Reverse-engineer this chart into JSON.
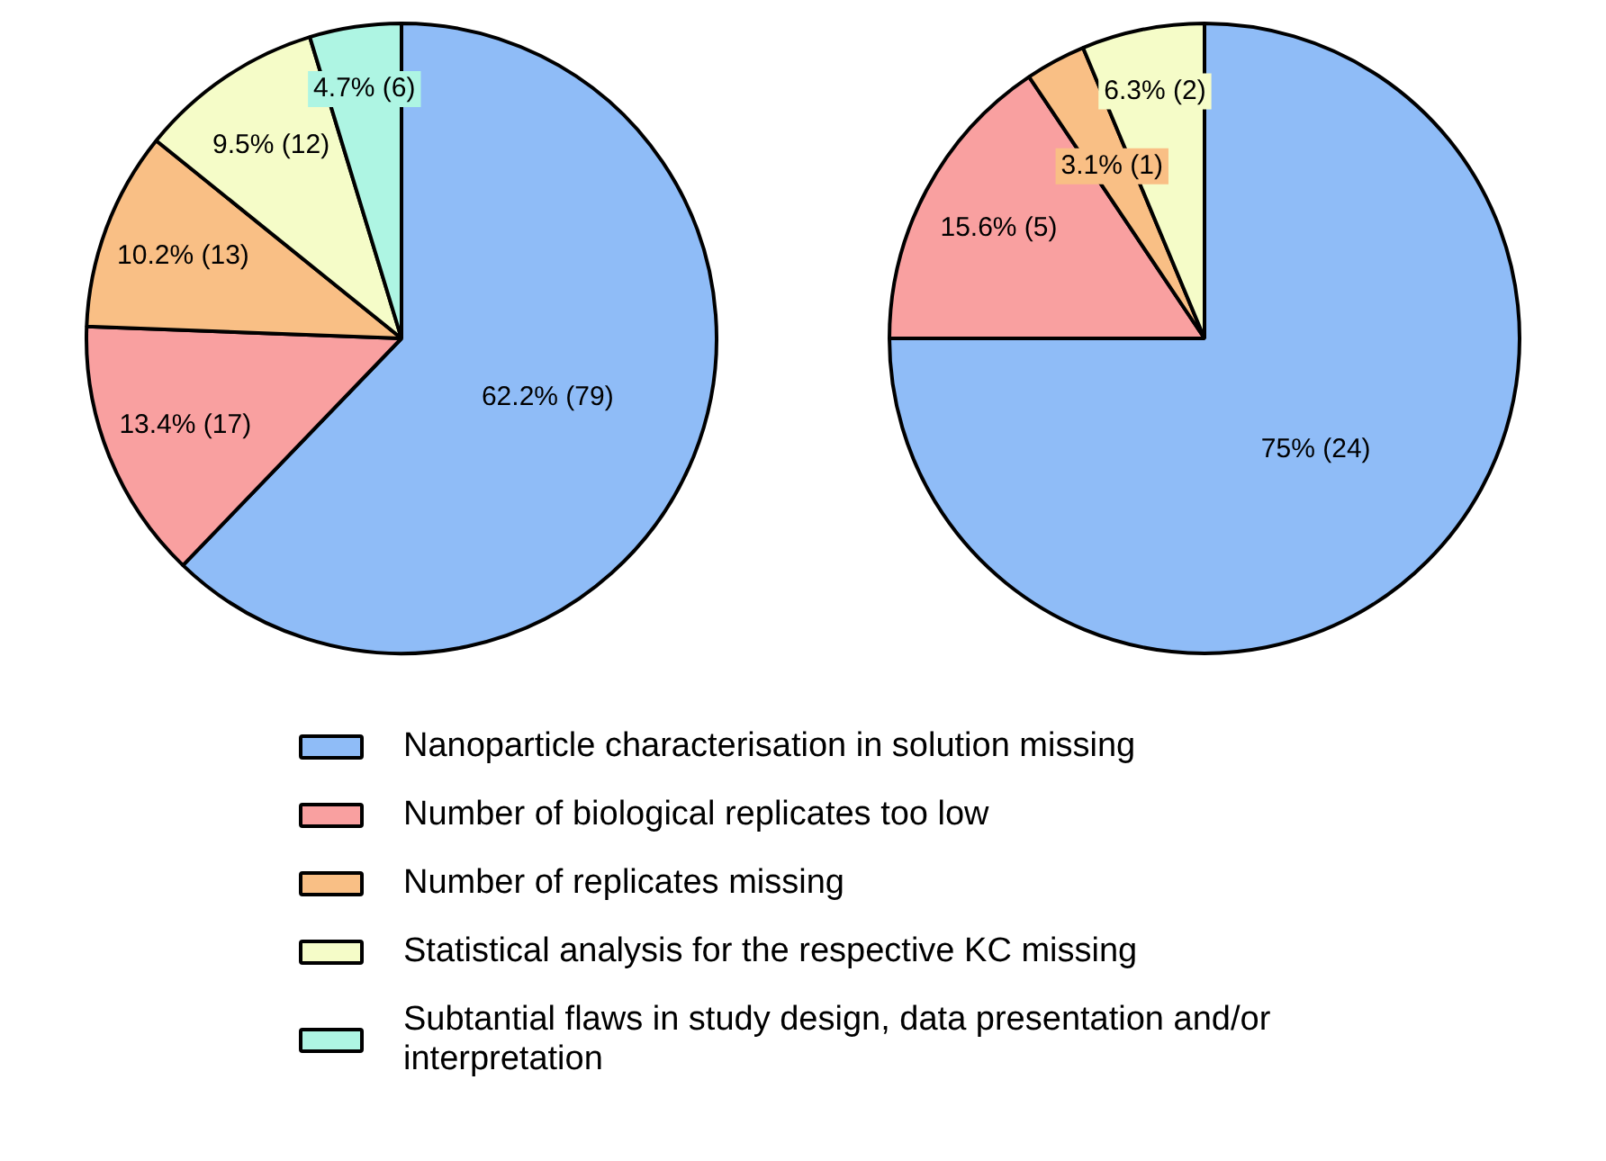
{
  "chart_data": [
    {
      "type": "pie",
      "categories": [
        "Nanoparticle characterisation in solution missing",
        "Number of biological replicates too low",
        "Number of replicates missing",
        "Statistical analysis for the respective KC missing",
        "Subtantial flaws in study design, data presentation and/or interpretation"
      ],
      "values": [
        62.2,
        13.4,
        10.2,
        9.5,
        4.7
      ],
      "value_labels": [
        "62.2% (79)",
        "13.4% (17)",
        "10.2% (13)",
        "9.5% (12)",
        "4.7% (6)"
      ],
      "colors": [
        "#8fbcf7",
        "#f9a0a0",
        "#f9bf85",
        "#f5fcc8",
        "#aef5e3"
      ],
      "legend": "bottom"
    },
    {
      "type": "pie",
      "categories": [
        null,
        null,
        null,
        null
      ],
      "values": [
        75,
        15.6,
        3.1,
        6.3
      ],
      "value_labels": [
        "75% (24)",
        "15.6% (5)",
        "3.1% (1)",
        "6.3% (2)"
      ],
      "colors": [
        "#8fbcf7",
        "#f9a0a0",
        "#f9bf85",
        "#f5fcc8"
      ]
    }
  ]
}
